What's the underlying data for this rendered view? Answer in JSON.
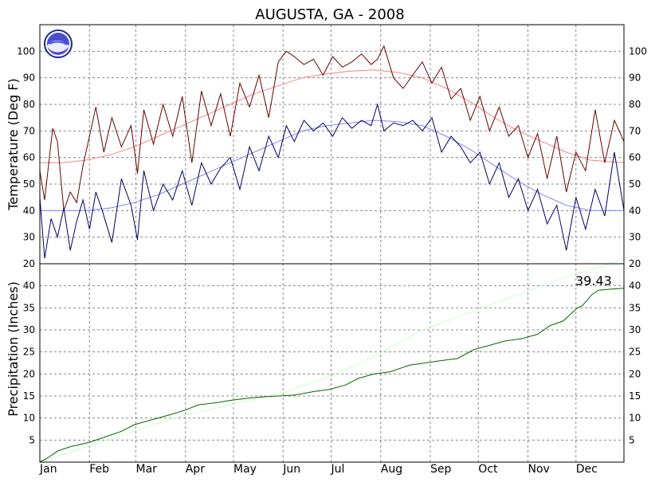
{
  "chart_data": [
    {
      "type": "line",
      "title": "AUGUSTA, GA - 2008",
      "ylabel": "Temperature (Deg F)",
      "ylim": [
        20,
        110
      ],
      "y_ticks": [
        20,
        30,
        40,
        50,
        60,
        70,
        80,
        90,
        100
      ],
      "grid": true,
      "x_ticks": [
        "Jan",
        "Feb",
        "Mar",
        "Apr",
        "May",
        "Jun",
        "Jul",
        "Aug",
        "Sep",
        "Oct",
        "Nov",
        "Dec"
      ],
      "series": [
        {
          "color": "#660000",
          "x": [
            1,
            4,
            9,
            12,
            16,
            20,
            24,
            28,
            32,
            36,
            41,
            46,
            52,
            58,
            62,
            66,
            72,
            78,
            84,
            90,
            96,
            102,
            108,
            114,
            120,
            126,
            132,
            138,
            144,
            150,
            155,
            160,
            166,
            172,
            178,
            184,
            190,
            196,
            202,
            208,
            212,
            216,
            222,
            228,
            234,
            240,
            246,
            252,
            258,
            264,
            270,
            276,
            282,
            288,
            294,
            300,
            306,
            312,
            318,
            324,
            330,
            336,
            342,
            348,
            354,
            360,
            366
          ],
          "values": [
            55,
            44,
            71,
            66,
            40,
            47,
            43,
            57,
            68,
            79,
            62,
            75,
            64,
            72,
            54,
            78,
            65,
            80,
            68,
            83,
            58,
            85,
            72,
            84,
            68,
            88,
            79,
            91,
            75,
            96,
            100,
            98,
            95,
            97,
            91,
            98,
            94,
            96,
            99,
            95,
            97,
            102,
            90,
            86,
            91,
            96,
            88,
            94,
            82,
            86,
            74,
            83,
            70,
            79,
            68,
            72,
            60,
            69,
            52,
            68,
            47,
            62,
            55,
            78,
            58,
            74,
            66
          ]
        },
        {
          "color": "#000066",
          "x": [
            1,
            4,
            8,
            12,
            16,
            20,
            24,
            28,
            32,
            36,
            40,
            46,
            52,
            58,
            62,
            66,
            72,
            78,
            84,
            90,
            96,
            102,
            108,
            114,
            120,
            126,
            132,
            138,
            144,
            150,
            155,
            160,
            166,
            172,
            178,
            184,
            190,
            196,
            202,
            208,
            212,
            216,
            222,
            228,
            234,
            240,
            246,
            252,
            258,
            264,
            270,
            276,
            282,
            288,
            294,
            300,
            306,
            312,
            318,
            324,
            330,
            336,
            342,
            348,
            354,
            360,
            366
          ],
          "values": [
            45,
            22,
            37,
            30,
            41,
            25,
            36,
            44,
            33,
            47,
            40,
            28,
            52,
            42,
            29,
            55,
            40,
            50,
            44,
            55,
            42,
            58,
            50,
            56,
            60,
            48,
            64,
            55,
            68,
            60,
            72,
            66,
            74,
            70,
            73,
            68,
            75,
            71,
            74,
            72,
            80,
            70,
            73,
            72,
            74,
            70,
            75,
            62,
            68,
            64,
            58,
            62,
            50,
            58,
            45,
            52,
            40,
            48,
            35,
            42,
            25,
            45,
            33,
            48,
            38,
            62,
            40
          ]
        },
        {
          "color": "#ff8080",
          "x": [
            1,
            15,
            30,
            45,
            60,
            75,
            90,
            105,
            120,
            135,
            150,
            165,
            180,
            195,
            210,
            225,
            240,
            255,
            270,
            285,
            300,
            315,
            330,
            345,
            366
          ],
          "values": [
            58,
            58,
            59,
            61,
            64,
            68,
            72,
            76,
            80,
            84,
            87,
            90,
            91.5,
            92.5,
            93,
            92,
            90,
            86,
            81,
            75,
            70,
            66,
            62,
            59,
            58
          ]
        },
        {
          "color": "#8080ff",
          "x": [
            1,
            15,
            30,
            45,
            60,
            75,
            90,
            105,
            120,
            135,
            150,
            165,
            180,
            195,
            210,
            225,
            240,
            255,
            270,
            285,
            300,
            315,
            330,
            345,
            366
          ],
          "values": [
            40,
            40,
            40,
            41,
            43,
            46,
            50,
            54,
            58,
            62,
            66,
            70,
            72,
            73,
            74,
            73.5,
            72,
            68,
            63,
            57,
            51,
            46,
            42,
            40,
            40
          ]
        }
      ]
    },
    {
      "type": "line",
      "ylabel": "Precipitation (Inches)",
      "ylim": [
        0,
        45
      ],
      "y_ticks": [
        5,
        10,
        15,
        20,
        25,
        30,
        35,
        40
      ],
      "grid": true,
      "x_ticks": [
        "Jan",
        "Feb",
        "Mar",
        "Apr",
        "May",
        "Jun",
        "Jul",
        "Aug",
        "Sep",
        "Oct",
        "Nov",
        "Dec"
      ],
      "annotation": "39.43",
      "series": [
        {
          "color": "#006600",
          "x": [
            1,
            6,
            12,
            20,
            32,
            40,
            52,
            60,
            70,
            80,
            92,
            100,
            112,
            120,
            131,
            140,
            150,
            160,
            172,
            182,
            192,
            200,
            210,
            220,
            232,
            242,
            251,
            262,
            272,
            282,
            292,
            302,
            312,
            320,
            328,
            337,
            340,
            346,
            350,
            356,
            366
          ],
          "values": [
            0,
            1,
            2.5,
            3.5,
            4.5,
            5.5,
            7,
            8.5,
            9.5,
            10.5,
            11.8,
            13,
            13.5,
            14,
            14.5,
            14.8,
            15,
            15.2,
            16,
            16.5,
            17.5,
            19,
            20,
            20.5,
            22,
            22.5,
            23,
            23.5,
            25.5,
            26.5,
            27.5,
            28,
            29,
            31,
            32,
            35,
            35.5,
            38,
            39,
            39.2,
            39.43
          ]
        },
        {
          "color": "#ccffcc",
          "x": [
            1,
            30,
            60,
            90,
            120,
            150,
            180,
            210,
            240,
            270,
            300,
            330,
            366
          ],
          "values": [
            0,
            3.5,
            7,
            10.5,
            13,
            15.5,
            19,
            24,
            30,
            34,
            38,
            42,
            46
          ]
        }
      ]
    }
  ]
}
